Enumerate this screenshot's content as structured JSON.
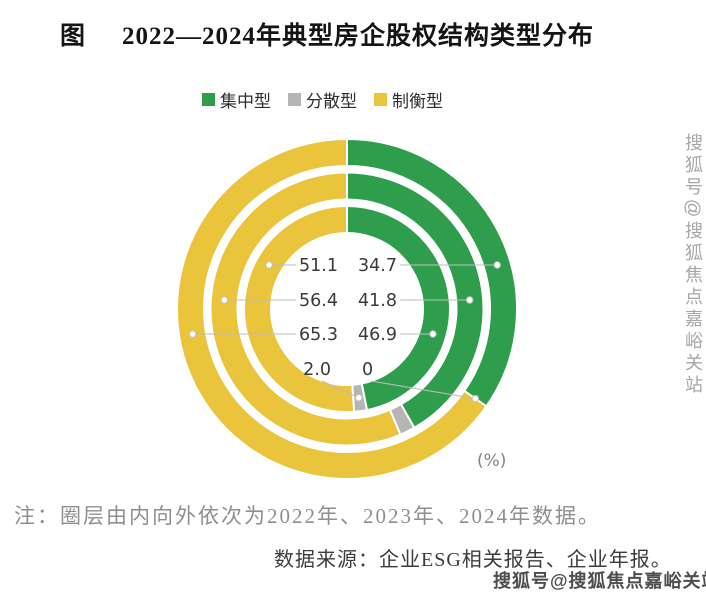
{
  "title": {
    "prefix": "图",
    "text": "2022—2024年典型房企股权结构类型分布"
  },
  "legend": [
    {
      "label": "集中型",
      "color": "#2E9E4D"
    },
    {
      "label": "分散型",
      "color": "#B5B5B5"
    },
    {
      "label": "制衡型",
      "color": "#EAC43A"
    }
  ],
  "chart_data": {
    "type": "pie",
    "subtype": "concentric-donut-3-rings",
    "title": "2022—2024年典型房企股权结构类型分布",
    "unit_label": "(%)",
    "series_order": [
      "集中型",
      "分散型",
      "制衡型"
    ],
    "colors": {
      "集中型": "#2E9E4D",
      "分散型": "#B5B5B5",
      "制衡型": "#EAC43A"
    },
    "rings": [
      {
        "year": "2022",
        "position": "inner",
        "values": {
          "集中型": 46.9,
          "分散型": 2.0,
          "制衡型": 51.1
        }
      },
      {
        "year": "2023",
        "position": "middle",
        "values": {
          "集中型": 41.8,
          "分散型": 1.8,
          "制衡型": 56.4
        }
      },
      {
        "year": "2024",
        "position": "outer",
        "values": {
          "集中型": 34.7,
          "分散型": 0,
          "制衡型": 65.3
        }
      }
    ],
    "visible_labels": {
      "left_column": [
        "51.1",
        "56.4",
        "65.3",
        "2.0"
      ],
      "right_column": [
        "34.7",
        "41.8",
        "46.9",
        "0"
      ]
    }
  },
  "note": "注：圈层由内向外依次为2022年、2023年、2024年数据。",
  "source": "数据来源：企业ESG相关报告、企业年报。",
  "watermark": {
    "vertical": "搜狐号@搜狐焦点嘉峪关站",
    "bottom": "搜狐号@搜狐焦点嘉峪关站"
  }
}
